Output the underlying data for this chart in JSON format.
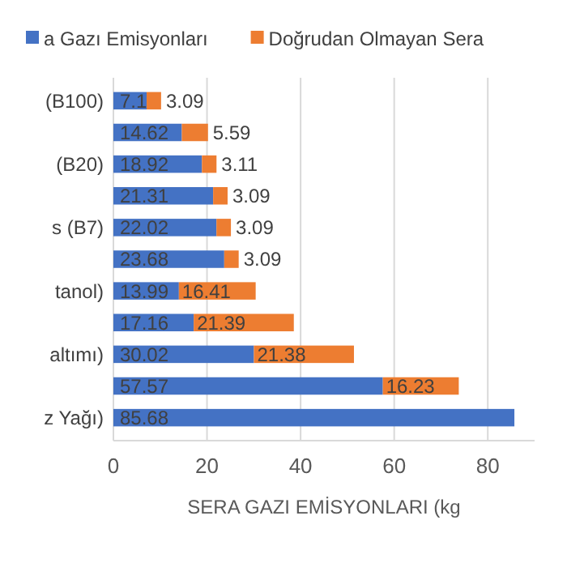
{
  "chart_data": {
    "type": "bar",
    "orientation": "horizontal",
    "stacked": true,
    "categories": [
      "(B100)",
      null,
      "(B20)",
      null,
      "s (B7)",
      null,
      "tanol)",
      null,
      "altımı)",
      null,
      "z Yağı)"
    ],
    "series": [
      {
        "name": "a Gazı Emisyonları",
        "color": "#4472c4",
        "values": [
          7.1,
          14.62,
          18.92,
          21.31,
          22.02,
          23.68,
          13.99,
          17.16,
          30.02,
          57.57,
          85.68
        ]
      },
      {
        "name": "Doğrudan Olmayan Sera",
        "color": "#ed7d31",
        "values": [
          3.09,
          5.59,
          3.11,
          3.09,
          3.09,
          3.09,
          16.41,
          21.39,
          21.38,
          16.23,
          null
        ]
      }
    ],
    "xlim": [
      0,
      90
    ],
    "xticks": [
      0,
      20,
      40,
      60,
      80
    ],
    "xlabel": "SERA GAZI EMİSYONLARI (kg",
    "grid": "x",
    "legend": "top",
    "data_labels": true
  }
}
